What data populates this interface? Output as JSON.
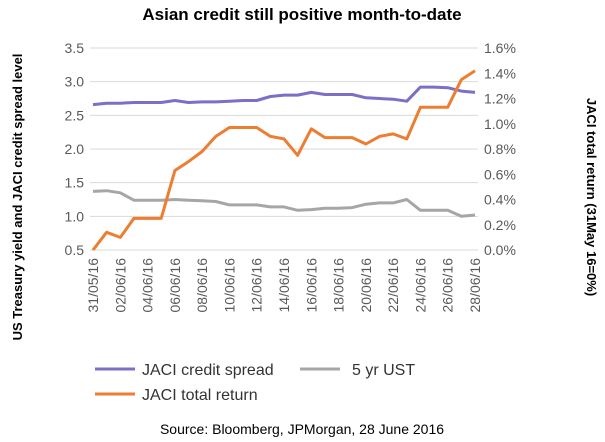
{
  "chart_data": {
    "type": "line",
    "title": "Asian credit still positive month-to-date",
    "ylabel": "US Treasury yield and JACI credit spread level",
    "y2label": "JACI total return (31May 16=0%)",
    "source": "Source: Bloomberg, JPMorgan, 28 June 2016",
    "x_tick_labels": [
      "31/05/16",
      "02/06/16",
      "04/06/16",
      "06/06/16",
      "08/06/16",
      "10/06/16",
      "12/06/16",
      "14/06/16",
      "16/06/16",
      "18/06/16",
      "20/06/16",
      "22/06/16",
      "24/06/16",
      "26/06/16",
      "28/06/16"
    ],
    "ylim": [
      0.5,
      3.5
    ],
    "y_ticks": [
      "0.5",
      "1.0",
      "1.5",
      "2.0",
      "2.5",
      "3.0",
      "3.5"
    ],
    "y2lim": [
      0,
      1.6
    ],
    "y2_ticks": [
      "0.0%",
      "0.2%",
      "0.4%",
      "0.6%",
      "0.8%",
      "1.0%",
      "1.2%",
      "1.4%",
      "1.6%"
    ],
    "legend_position": "bottom",
    "x": [
      "31/05/16",
      "01/06/16",
      "02/06/16",
      "03/06/16",
      "04/06/16",
      "05/06/16",
      "06/06/16",
      "07/06/16",
      "08/06/16",
      "09/06/16",
      "10/06/16",
      "11/06/16",
      "12/06/16",
      "13/06/16",
      "14/06/16",
      "15/06/16",
      "16/06/16",
      "17/06/16",
      "18/06/16",
      "19/06/16",
      "20/06/16",
      "21/06/16",
      "22/06/16",
      "23/06/16",
      "24/06/16",
      "25/06/16",
      "26/06/16",
      "27/06/16",
      "28/06/16"
    ],
    "series": [
      {
        "name": "JACI credit spread",
        "axis": "left",
        "color": "#7b6fc6",
        "values": [
          2.66,
          2.68,
          2.68,
          2.69,
          2.69,
          2.69,
          2.72,
          2.69,
          2.7,
          2.7,
          2.71,
          2.72,
          2.72,
          2.78,
          2.8,
          2.8,
          2.84,
          2.81,
          2.81,
          2.81,
          2.76,
          2.75,
          2.74,
          2.71,
          2.92,
          2.92,
          2.91,
          2.86,
          2.84
        ]
      },
      {
        "name": "5 yr UST",
        "axis": "left",
        "color": "#a6a6a6",
        "values": [
          1.37,
          1.38,
          1.35,
          1.24,
          1.24,
          1.24,
          1.25,
          1.24,
          1.23,
          1.22,
          1.17,
          1.17,
          1.17,
          1.14,
          1.14,
          1.09,
          1.1,
          1.12,
          1.12,
          1.13,
          1.18,
          1.2,
          1.2,
          1.25,
          1.09,
          1.09,
          1.09,
          1.0,
          1.02
        ]
      },
      {
        "name": "JACI total return",
        "axis": "right",
        "color": "#ed7d31",
        "values": [
          0.0,
          0.14,
          0.1,
          0.25,
          0.25,
          0.25,
          0.63,
          0.7,
          0.78,
          0.9,
          0.97,
          0.97,
          0.97,
          0.9,
          0.88,
          0.75,
          0.96,
          0.89,
          0.89,
          0.89,
          0.84,
          0.9,
          0.92,
          0.88,
          1.13,
          1.13,
          1.13,
          1.35,
          1.42
        ]
      }
    ]
  }
}
